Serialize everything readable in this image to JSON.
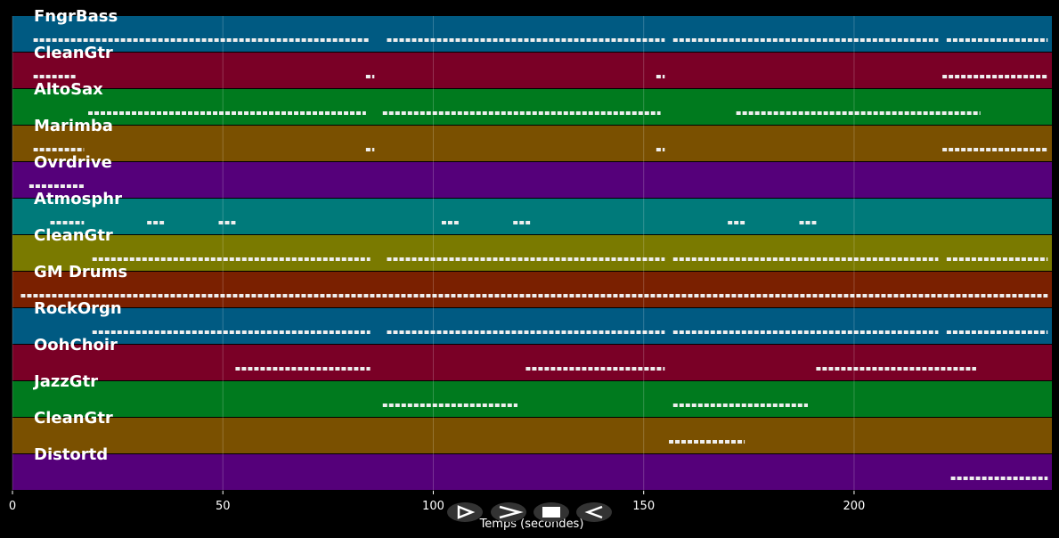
{
  "chart_data": {
    "type": "pianoroll",
    "x_label": "Temps (secondes)",
    "xlim": [
      0,
      247
    ],
    "xticks": [
      0,
      50,
      100,
      150,
      200
    ],
    "grid": true,
    "tracks": [
      {
        "name": "FngrBass",
        "color": "#005a82",
        "segments": [
          [
            5,
            85
          ],
          [
            89,
            155
          ],
          [
            157,
            220
          ],
          [
            222,
            246
          ]
        ]
      },
      {
        "name": "CleanGtr",
        "color": "#7a0026",
        "segments": [
          [
            5,
            15
          ],
          [
            84,
            86
          ],
          [
            153,
            155
          ],
          [
            221,
            246
          ]
        ]
      },
      {
        "name": "AltoSax",
        "color": "#007a1e",
        "segments": [
          [
            18,
            84
          ],
          [
            88,
            154
          ],
          [
            172,
            230
          ]
        ]
      },
      {
        "name": "Marimba",
        "color": "#7a5000",
        "segments": [
          [
            5,
            17
          ],
          [
            84,
            86
          ],
          [
            153,
            155
          ],
          [
            221,
            246
          ]
        ]
      },
      {
        "name": "Ovrdrive",
        "color": "#55007a",
        "segments": [
          [
            4,
            17
          ]
        ]
      },
      {
        "name": "Atmosphr",
        "color": "#007a7a",
        "segments": [
          [
            9,
            17
          ],
          [
            32,
            36
          ],
          [
            49,
            53
          ],
          [
            102,
            106
          ],
          [
            119,
            123
          ],
          [
            170,
            174
          ],
          [
            187,
            191
          ]
        ]
      },
      {
        "name": "CleanGtr",
        "color": "#7a7a00",
        "segments": [
          [
            19,
            85
          ],
          [
            89,
            155
          ],
          [
            157,
            220
          ],
          [
            222,
            246
          ]
        ]
      },
      {
        "name": "GM Drums",
        "color": "#7a2000",
        "segments": [
          [
            2,
            246
          ]
        ]
      },
      {
        "name": "RockOrgn",
        "color": "#005a82",
        "segments": [
          [
            19,
            85
          ],
          [
            89,
            155
          ],
          [
            157,
            220
          ],
          [
            222,
            246
          ]
        ]
      },
      {
        "name": "OohChoir",
        "color": "#7a0026",
        "segments": [
          [
            53,
            85
          ],
          [
            122,
            155
          ],
          [
            191,
            229
          ]
        ]
      },
      {
        "name": "JazzGtr",
        "color": "#007a1e",
        "segments": [
          [
            88,
            120
          ],
          [
            157,
            189
          ]
        ]
      },
      {
        "name": "CleanGtr",
        "color": "#7a5000",
        "segments": [
          [
            156,
            174
          ]
        ]
      },
      {
        "name": "Distortd",
        "color": "#55007a",
        "segments": [
          [
            223,
            246
          ]
        ]
      }
    ]
  }
}
